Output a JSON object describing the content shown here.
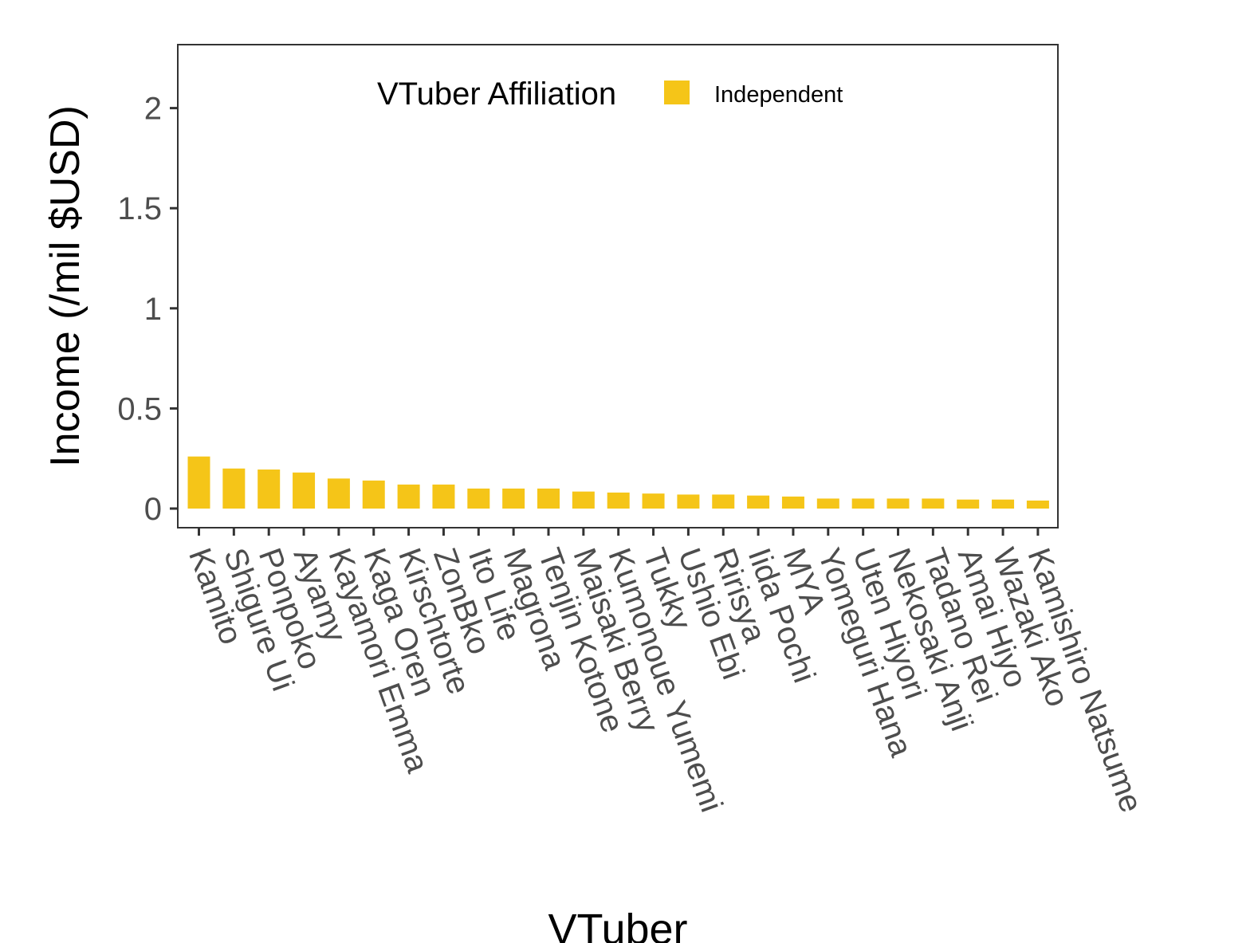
{
  "chart_data": {
    "type": "bar",
    "title": "",
    "xlabel": "VTuber",
    "ylabel": "Income (/mil $USD)",
    "ylim": [
      -0.1,
      2.3
    ],
    "yticks": [
      0,
      0.5,
      1,
      1.5,
      2
    ],
    "ytick_labels": [
      "0",
      "0.5",
      "1",
      "1.5",
      "2"
    ],
    "grid": false,
    "legend": {
      "title": "VTuber Affiliation",
      "position": "top-center",
      "entries": [
        {
          "label": "Independent",
          "color": "#F5C518"
        }
      ]
    },
    "categories": [
      "Kamito",
      "Shigure Ui",
      "Ponpoko",
      "Ayamy",
      "Kayamori Emma",
      "Kaga Oren",
      "Kirschtorte",
      "ZonBko",
      "Ito Life",
      "Magrona",
      "Tenjin Kotone",
      "Maisaki Berry",
      "Kumonoue Yumemi",
      "Tukky",
      "Ushio Ebi",
      "Ririsya",
      "Iida Pochi",
      "MYA",
      "Yomeguri Hana",
      "Uten Hiyori",
      "Nekosaki Anji",
      "Tadano Rei",
      "Amai Hiyo",
      "Wazaki Ako",
      "Kamishiro Natsume"
    ],
    "series": [
      {
        "name": "Independent",
        "color": "#F5C518",
        "values": [
          0.26,
          0.2,
          0.195,
          0.18,
          0.15,
          0.14,
          0.12,
          0.12,
          0.1,
          0.1,
          0.1,
          0.085,
          0.08,
          0.075,
          0.07,
          0.07,
          0.065,
          0.06,
          0.05,
          0.05,
          0.05,
          0.05,
          0.045,
          0.045,
          0.04
        ]
      }
    ]
  }
}
